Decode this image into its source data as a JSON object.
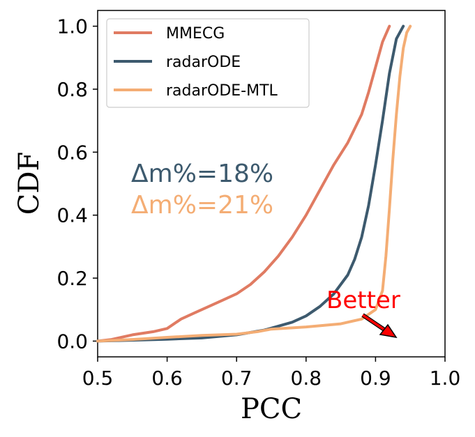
{
  "chart_data": {
    "type": "line",
    "xlabel": "PCC",
    "ylabel": "CDF",
    "xlim": [
      0.5,
      1.0
    ],
    "ylim": [
      -0.05,
      1.05
    ],
    "x_ticks": [
      "0.5",
      "0.6",
      "0.7",
      "0.8",
      "0.9",
      "1.0"
    ],
    "y_ticks": [
      "0.0",
      "0.2",
      "0.4",
      "0.6",
      "0.8",
      "1.0"
    ],
    "legend_position": "top-left",
    "grid": false,
    "series": [
      {
        "name": "MMECG",
        "color": "#e07b62",
        "x": [
          0.5,
          0.52,
          0.55,
          0.58,
          0.6,
          0.62,
          0.64,
          0.66,
          0.68,
          0.7,
          0.72,
          0.74,
          0.76,
          0.78,
          0.8,
          0.82,
          0.84,
          0.86,
          0.88,
          0.89,
          0.9,
          0.91,
          0.92
        ],
        "y": [
          0.0,
          0.005,
          0.02,
          0.03,
          0.04,
          0.07,
          0.09,
          0.11,
          0.13,
          0.15,
          0.18,
          0.22,
          0.27,
          0.33,
          0.4,
          0.48,
          0.56,
          0.63,
          0.72,
          0.79,
          0.87,
          0.95,
          1.0
        ]
      },
      {
        "name": "radarODE",
        "color": "#3d5a6e",
        "x": [
          0.5,
          0.55,
          0.6,
          0.65,
          0.7,
          0.74,
          0.78,
          0.8,
          0.82,
          0.84,
          0.86,
          0.87,
          0.88,
          0.89,
          0.9,
          0.91,
          0.92,
          0.93,
          0.94
        ],
        "y": [
          0.0,
          0.003,
          0.006,
          0.01,
          0.02,
          0.035,
          0.06,
          0.08,
          0.11,
          0.15,
          0.21,
          0.26,
          0.33,
          0.43,
          0.56,
          0.7,
          0.85,
          0.96,
          1.0
        ]
      },
      {
        "name": "radarODE-MTL",
        "color": "#f4ad74",
        "x": [
          0.5,
          0.55,
          0.6,
          0.65,
          0.7,
          0.73,
          0.75,
          0.8,
          0.85,
          0.88,
          0.9,
          0.91,
          0.915,
          0.92,
          0.925,
          0.93,
          0.935,
          0.94,
          0.945,
          0.95
        ],
        "y": [
          0.0,
          0.005,
          0.012,
          0.018,
          0.022,
          0.03,
          0.038,
          0.045,
          0.055,
          0.07,
          0.1,
          0.16,
          0.27,
          0.42,
          0.58,
          0.72,
          0.84,
          0.93,
          0.98,
          1.0
        ]
      }
    ],
    "annotations": [
      {
        "text": "Δm%=18%",
        "color": "#3d5a6e"
      },
      {
        "text": "Δm%=21%",
        "color": "#f4ad74"
      },
      {
        "text": "Better",
        "color": "#ff0000"
      }
    ]
  }
}
